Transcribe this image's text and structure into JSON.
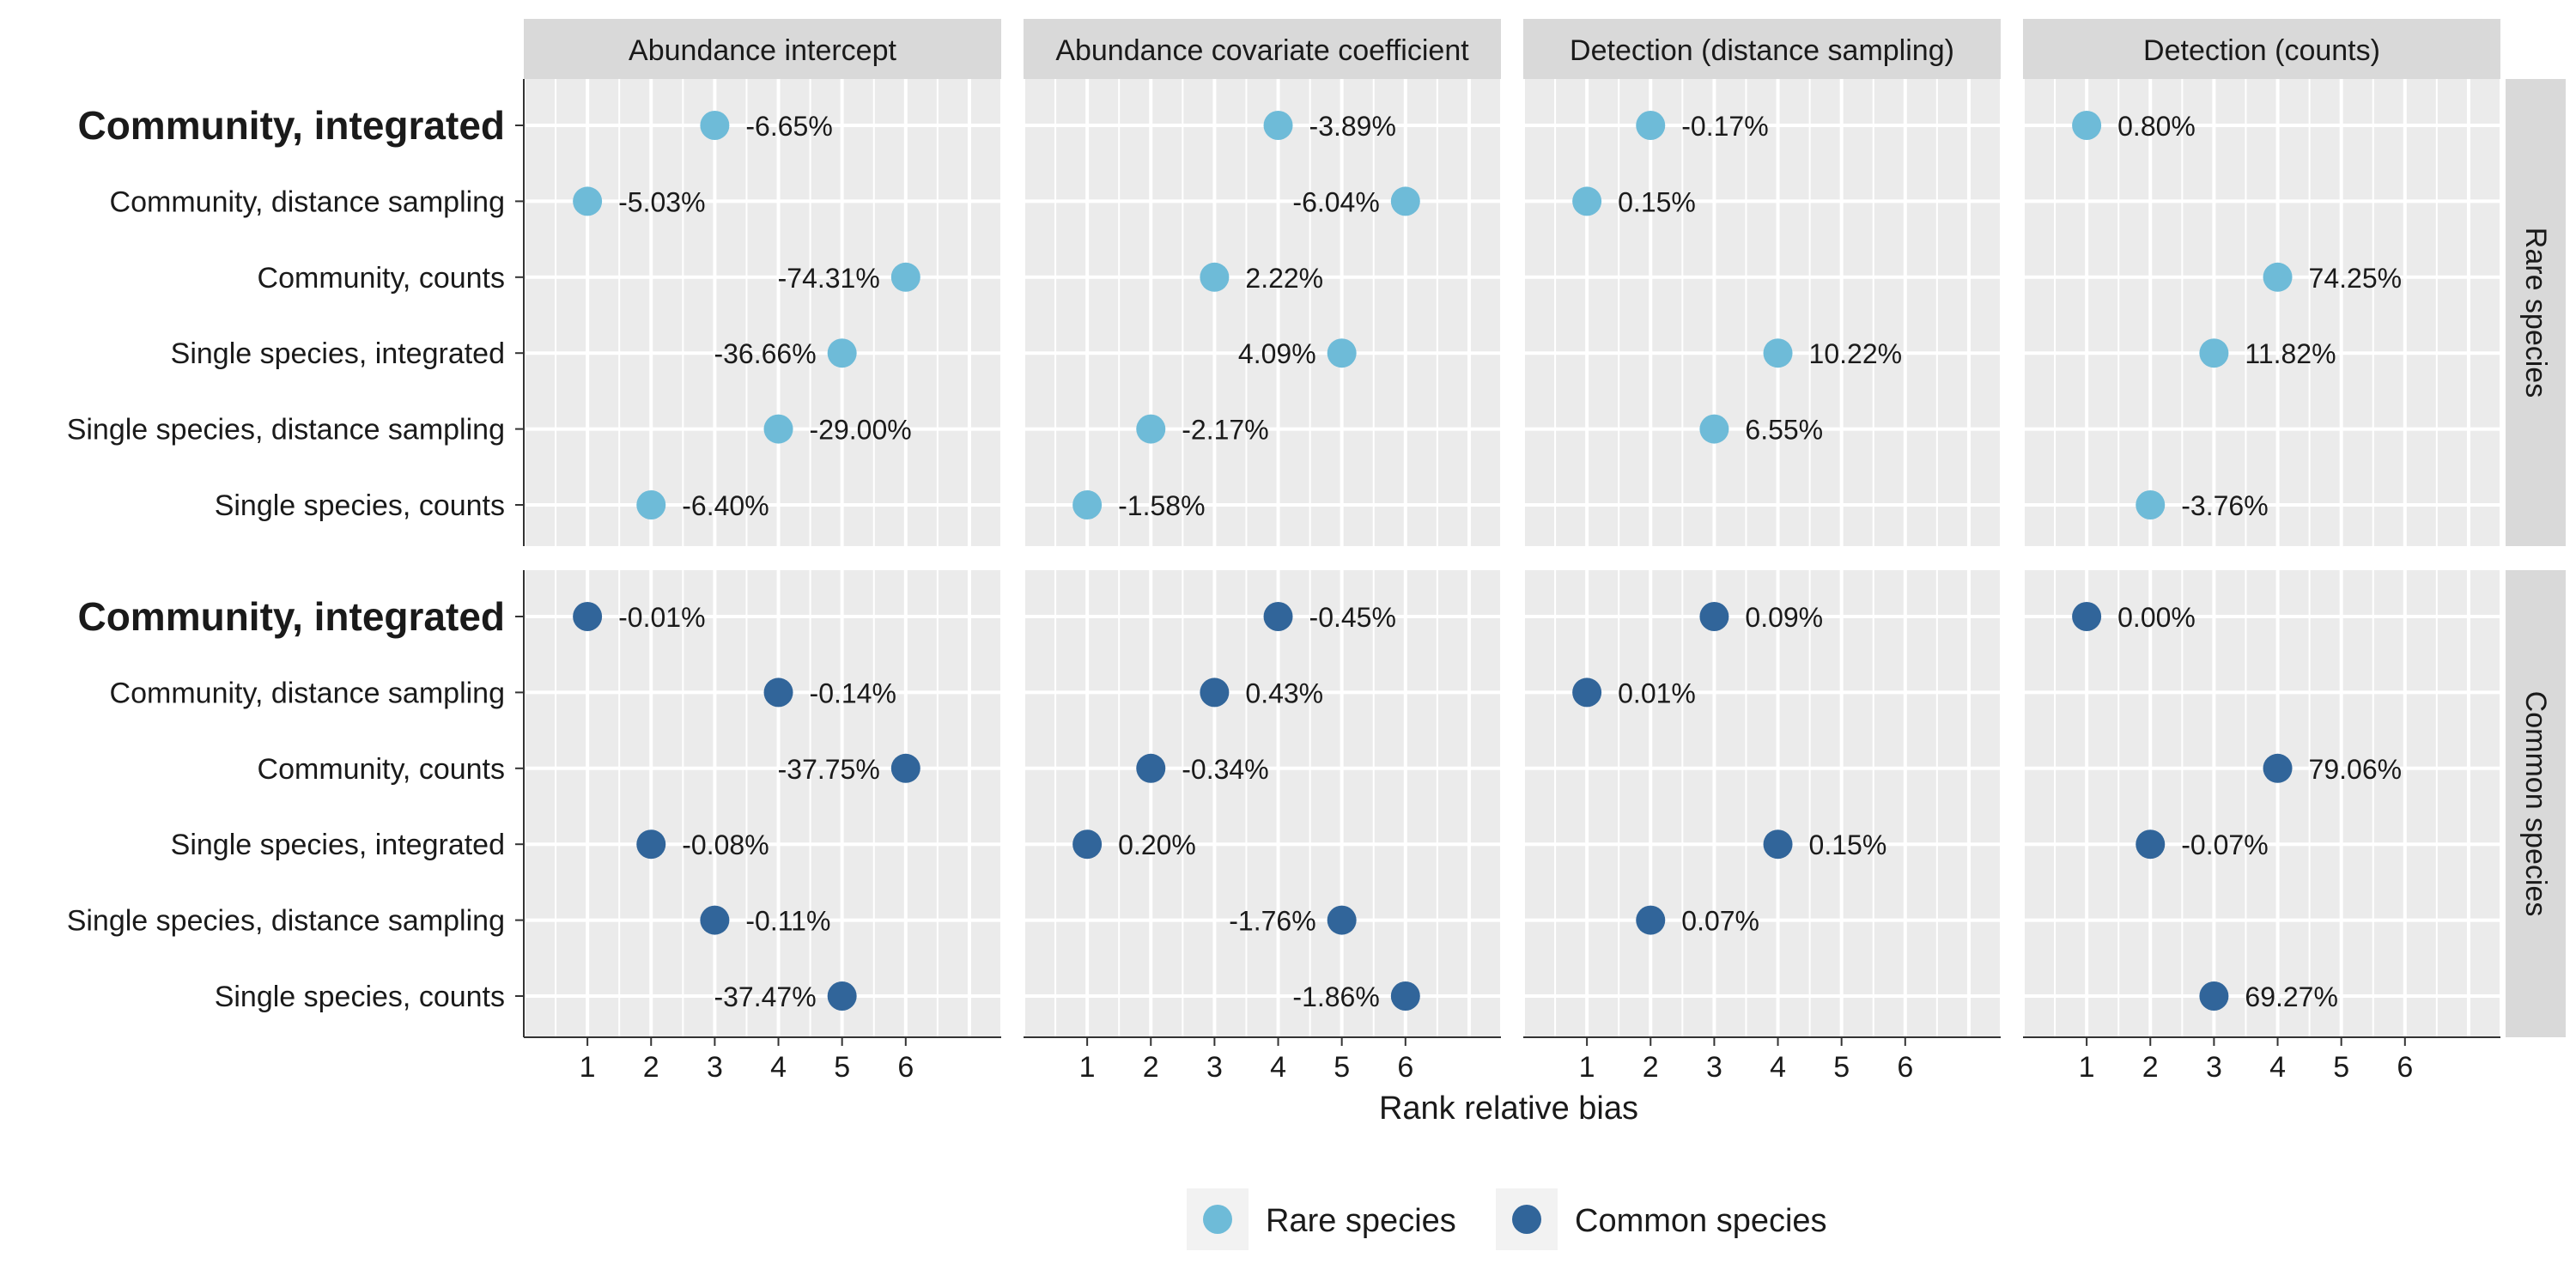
{
  "chart_data": {
    "type": "scatter",
    "xlabel": "Rank relative bias",
    "x_ticks": [
      1,
      2,
      3,
      4,
      5,
      6
    ],
    "xlim": [
      0,
      7.5
    ],
    "grid": true,
    "legend_position": "bottom",
    "columns": [
      "Abundance intercept",
      "Abundance covariate coefficient",
      "Detection (distance sampling)",
      "Detection (counts)"
    ],
    "rows": [
      "Rare species",
      "Common species"
    ],
    "models": [
      "Community, integrated",
      "Community, distance sampling",
      "Community, counts",
      "Single species, integrated",
      "Single species, distance sampling",
      "Single species, counts"
    ],
    "bold_model": "Community, integrated",
    "series": [
      {
        "name": "Rare species",
        "color": "#6EBBD8"
      },
      {
        "name": "Common species",
        "color": "#31659A"
      }
    ],
    "panels": [
      {
        "row": "Rare species",
        "column": "Abundance intercept",
        "points": [
          {
            "model": "Community, integrated",
            "rank": 3,
            "label": "-6.65%"
          },
          {
            "model": "Community, distance sampling",
            "rank": 1,
            "label": "-5.03%"
          },
          {
            "model": "Community, counts",
            "rank": 6,
            "label": "-74.31%"
          },
          {
            "model": "Single species, integrated",
            "rank": 5,
            "label": "-36.66%"
          },
          {
            "model": "Single species, distance sampling",
            "rank": 4,
            "label": "-29.00%"
          },
          {
            "model": "Single species, counts",
            "rank": 2,
            "label": "-6.40%"
          }
        ]
      },
      {
        "row": "Rare species",
        "column": "Abundance covariate coefficient",
        "points": [
          {
            "model": "Community, integrated",
            "rank": 4,
            "label": "-3.89%"
          },
          {
            "model": "Community, distance sampling",
            "rank": 6,
            "label": "-6.04%"
          },
          {
            "model": "Community, counts",
            "rank": 3,
            "label": "2.22%"
          },
          {
            "model": "Single species, integrated",
            "rank": 5,
            "label": "4.09%"
          },
          {
            "model": "Single species, distance sampling",
            "rank": 2,
            "label": "-2.17%"
          },
          {
            "model": "Single species, counts",
            "rank": 1,
            "label": "-1.58%"
          }
        ]
      },
      {
        "row": "Rare species",
        "column": "Detection (distance sampling)",
        "points": [
          {
            "model": "Community, integrated",
            "rank": 2,
            "label": "-0.17%"
          },
          {
            "model": "Community, distance sampling",
            "rank": 1,
            "label": "0.15%"
          },
          {
            "model": "Single species, integrated",
            "rank": 4,
            "label": "10.22%"
          },
          {
            "model": "Single species, distance sampling",
            "rank": 3,
            "label": "6.55%"
          }
        ]
      },
      {
        "row": "Rare species",
        "column": "Detection (counts)",
        "points": [
          {
            "model": "Community, integrated",
            "rank": 1,
            "label": "0.80%"
          },
          {
            "model": "Community, counts",
            "rank": 4,
            "label": "74.25%"
          },
          {
            "model": "Single species, integrated",
            "rank": 3,
            "label": "11.82%"
          },
          {
            "model": "Single species, counts",
            "rank": 2,
            "label": "-3.76%"
          }
        ]
      },
      {
        "row": "Common species",
        "column": "Abundance intercept",
        "points": [
          {
            "model": "Community, integrated",
            "rank": 1,
            "label": "-0.01%"
          },
          {
            "model": "Community, distance sampling",
            "rank": 4,
            "label": "-0.14%"
          },
          {
            "model": "Community, counts",
            "rank": 6,
            "label": "-37.75%"
          },
          {
            "model": "Single species, integrated",
            "rank": 2,
            "label": "-0.08%"
          },
          {
            "model": "Single species, distance sampling",
            "rank": 3,
            "label": "-0.11%"
          },
          {
            "model": "Single species, counts",
            "rank": 5,
            "label": "-37.47%"
          }
        ]
      },
      {
        "row": "Common species",
        "column": "Abundance covariate coefficient",
        "points": [
          {
            "model": "Community, integrated",
            "rank": 4,
            "label": "-0.45%"
          },
          {
            "model": "Community, distance sampling",
            "rank": 3,
            "label": "0.43%"
          },
          {
            "model": "Community, counts",
            "rank": 2,
            "label": "-0.34%"
          },
          {
            "model": "Single species, integrated",
            "rank": 1,
            "label": "0.20%"
          },
          {
            "model": "Single species, distance sampling",
            "rank": 5,
            "label": "-1.76%"
          },
          {
            "model": "Single species, counts",
            "rank": 6,
            "label": "-1.86%"
          }
        ]
      },
      {
        "row": "Common species",
        "column": "Detection (distance sampling)",
        "points": [
          {
            "model": "Community, integrated",
            "rank": 3,
            "label": "0.09%"
          },
          {
            "model": "Community, distance sampling",
            "rank": 1,
            "label": "0.01%"
          },
          {
            "model": "Single species, integrated",
            "rank": 4,
            "label": "0.15%"
          },
          {
            "model": "Single species, distance sampling",
            "rank": 2,
            "label": "0.07%"
          }
        ]
      },
      {
        "row": "Common species",
        "column": "Detection (counts)",
        "points": [
          {
            "model": "Community, integrated",
            "rank": 1,
            "label": "0.00%"
          },
          {
            "model": "Community, counts",
            "rank": 4,
            "label": "79.06%"
          },
          {
            "model": "Single species, integrated",
            "rank": 2,
            "label": "-0.07%"
          },
          {
            "model": "Single species, counts",
            "rank": 3,
            "label": "69.27%"
          }
        ]
      }
    ]
  }
}
